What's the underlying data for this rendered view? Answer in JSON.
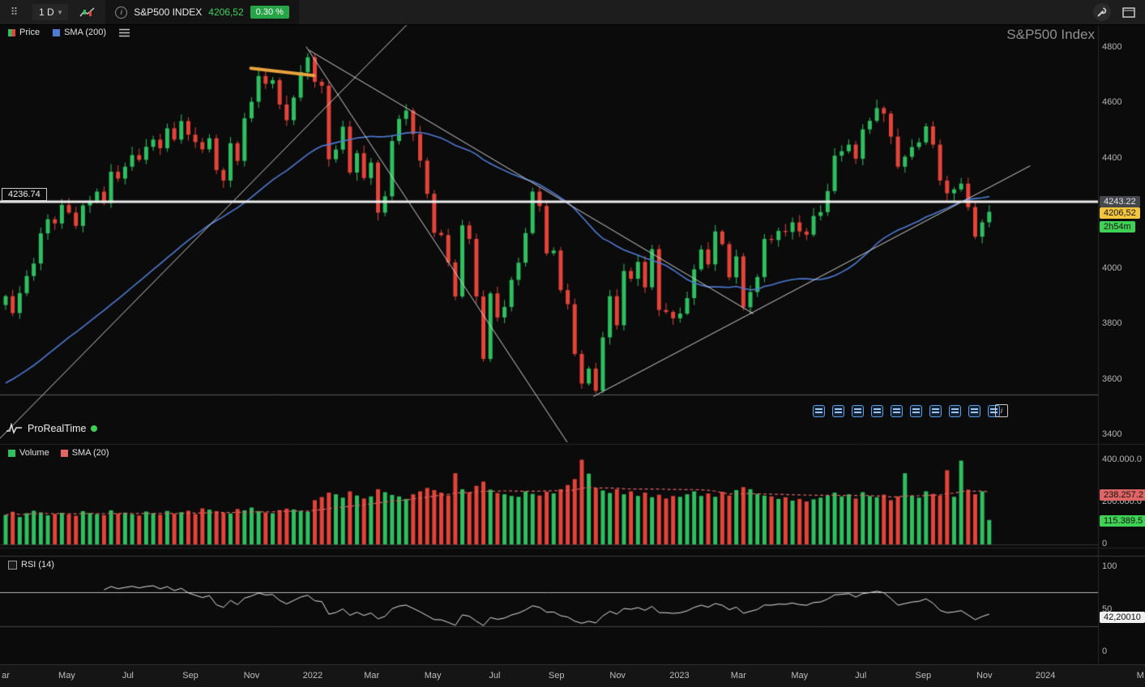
{
  "toolbar": {
    "timeframe": "1 D",
    "symbol": "S&P500 INDEX",
    "last_price": "4206,52",
    "change_pct": "0.30 %"
  },
  "icons": {
    "workspace": "⠿",
    "chevron": "▾",
    "info": "i"
  },
  "watermark": "S&P500 Index",
  "price_legend": {
    "price": "Price",
    "sma": "SMA (200)"
  },
  "volume_legend": {
    "volume": "Volume",
    "sma": "SMA (20)"
  },
  "rsi_legend": {
    "label": "RSI (14)"
  },
  "prt": {
    "name": "ProRealTime"
  },
  "price_axis": {
    "ticks": [
      "4800",
      "4600",
      "4400",
      "4000",
      "3800",
      "3600",
      "3400"
    ],
    "level_label": "4243.22",
    "last_price_label": "4206,52",
    "countdown_label": "2h54m",
    "left_level_label": "4236.74"
  },
  "volume_axis": {
    "ticks": [
      {
        "label": "400.000.0",
        "v": 400
      },
      {
        "label": "200.000.0",
        "v": 200
      },
      {
        "label": "0",
        "v": 0
      }
    ],
    "sma_value": {
      "label": "238.257.2",
      "v": 238.2
    },
    "current": {
      "label": "115.389.5",
      "v": 115.4
    }
  },
  "rsi_axis": {
    "ticks": [
      {
        "label": "100",
        "v": 100
      },
      {
        "label": "50",
        "v": 50
      },
      {
        "label": "0",
        "v": 0
      }
    ],
    "value": {
      "label": "42,20010",
      "v": 42.2
    }
  },
  "level_icons": {
    "count": 10,
    "icon": "clipboard"
  },
  "chart_data": {
    "type": "candlestick",
    "title": "S&P500 Index",
    "timeframe": "1 D (Mar 2021 – Nov 2023 shown, weekly-resolution reconstruction)",
    "axis_ranges": {
      "price": [
        3380,
        4950
      ],
      "volume": [
        0,
        450
      ],
      "rsi": [
        0,
        100
      ]
    },
    "legend_position": "top-left",
    "grid": false,
    "first_open": 3870,
    "closes": [
      3902,
      3841,
      3913,
      3975,
      4020,
      4129,
      4180,
      4165,
      4232,
      4204,
      4156,
      4230,
      4247,
      4280,
      4239,
      4352,
      4327,
      4370,
      4412,
      4395,
      4442,
      4468,
      4437,
      4509,
      4468,
      4535,
      4486,
      4459,
      4433,
      4473,
      4358,
      4320,
      4455,
      4391,
      4545,
      4605,
      4698,
      4670,
      4683,
      4595,
      4538,
      4620,
      4712,
      4766,
      4677,
      4663,
      4397,
      4432,
      4515,
      4349,
      4419,
      4329,
      4385,
      4204,
      4263,
      4463,
      4543,
      4573,
      4488,
      4392,
      4272,
      4131,
      4123,
      4024,
      3901,
      4158,
      4109,
      3901,
      3675,
      3912,
      3825,
      3863,
      3961,
      4023,
      4130,
      4280,
      4228,
      4057,
      4067,
      3924,
      3873,
      3693,
      3586,
      3640,
      3560,
      3753,
      3902,
      3797,
      3993,
      3965,
      4026,
      3934,
      4072,
      3852,
      3845,
      3822,
      3839,
      3895,
      3999,
      4071,
      4017,
      4136,
      4090,
      3970,
      4046,
      3862,
      3917,
      3971,
      4109,
      4105,
      4138,
      4134,
      4169,
      4136,
      4124,
      4192,
      4206,
      4282,
      4410,
      4426,
      4450,
      4399,
      4505,
      4536,
      4582,
      4562,
      4479,
      4370,
      4406,
      4441,
      4458,
      4516,
      4450,
      4320,
      4274,
      4288,
      4309,
      4224,
      4117,
      4169,
      4207
    ],
    "volumes": [
      140,
      155,
      130,
      148,
      160,
      152,
      138,
      145,
      150,
      142,
      136,
      158,
      149,
      144,
      139,
      162,
      147,
      151,
      143,
      137,
      156,
      148,
      141,
      159,
      146,
      153,
      160,
      144,
      171,
      165,
      158,
      150,
      147,
      168,
      162,
      175,
      158,
      152,
      148,
      163,
      170,
      166,
      159,
      155,
      210,
      225,
      246,
      238,
      222,
      252,
      232,
      218,
      228,
      262,
      248,
      235,
      228,
      216,
      238,
      252,
      268,
      258,
      246,
      232,
      338,
      262,
      248,
      278,
      298,
      260,
      244,
      238,
      230,
      226,
      252,
      240,
      232,
      250,
      242,
      262,
      282,
      310,
      402,
      336,
      268,
      256,
      244,
      262,
      238,
      252,
      230,
      246,
      224,
      236,
      218,
      230,
      226,
      238,
      252,
      230,
      242,
      226,
      250,
      232,
      258,
      272,
      262,
      240,
      232,
      228,
      216,
      224,
      208,
      216,
      204,
      214,
      222,
      232,
      246,
      228,
      238,
      218,
      248,
      230,
      224,
      236,
      210,
      228,
      338,
      232,
      222,
      252,
      240,
      232,
      352,
      226,
      398,
      260,
      238,
      252,
      116
    ],
    "sma_period": 40,
    "sma_prehistory": {
      "start": 3260,
      "step": 16,
      "count": 40
    },
    "vol_sma_period": 20,
    "rsi_period": 14,
    "levels": [
      {
        "price": 4243.22,
        "width": 3,
        "color": "#ececec"
      },
      {
        "price": 3545,
        "width": 1,
        "color": "#5f5f5f"
      }
    ],
    "trendlines": [
      {
        "i1": -1,
        "p1": 3383,
        "i2": 60.5,
        "p2": 4971,
        "color": "#cfcfcf",
        "width": 1
      },
      {
        "i1": 42.8,
        "p1": 4803,
        "i2": 79.9,
        "p2": 3375,
        "color": "#cfcfcf",
        "width": 1
      },
      {
        "i1": 43.2,
        "p1": 4791,
        "i2": 106.4,
        "p2": 3839,
        "color": "#cfcfcf",
        "width": 1
      },
      {
        "i1": 83.7,
        "p1": 3540,
        "i2": 145.8,
        "p2": 4373,
        "color": "#cfcfcf",
        "width": 1
      },
      {
        "i1": 34.9,
        "p1": 4726,
        "i2": 43.9,
        "p2": 4700,
        "color": "#e8a33d",
        "width": 4
      }
    ],
    "time_ticks": [
      {
        "label": "ar",
        "i": 0
      },
      {
        "label": "May",
        "i": 8.7
      },
      {
        "label": "Jul",
        "i": 17.4
      },
      {
        "label": "Sep",
        "i": 26.3
      },
      {
        "label": "Nov",
        "i": 35
      },
      {
        "label": "2022",
        "i": 43.7
      },
      {
        "label": "Mar",
        "i": 52.1
      },
      {
        "label": "May",
        "i": 60.8
      },
      {
        "label": "Jul",
        "i": 69.6
      },
      {
        "label": "Sep",
        "i": 78.4
      },
      {
        "label": "Nov",
        "i": 87.1
      },
      {
        "label": "2023",
        "i": 95.9
      },
      {
        "label": "Mar",
        "i": 104.3
      },
      {
        "label": "May",
        "i": 113
      },
      {
        "label": "Jul",
        "i": 121.7
      },
      {
        "label": "Sep",
        "i": 130.6
      },
      {
        "label": "Nov",
        "i": 139.3
      },
      {
        "label": "2024",
        "i": 148
      },
      {
        "label": "M",
        "i": 161.5
      }
    ],
    "colors": {
      "up": "#2fbf61",
      "down": "#e2443a",
      "sma200": "#4f7bd4",
      "vol_sma": "#e06565",
      "rsi": "#e2e2e2"
    }
  }
}
